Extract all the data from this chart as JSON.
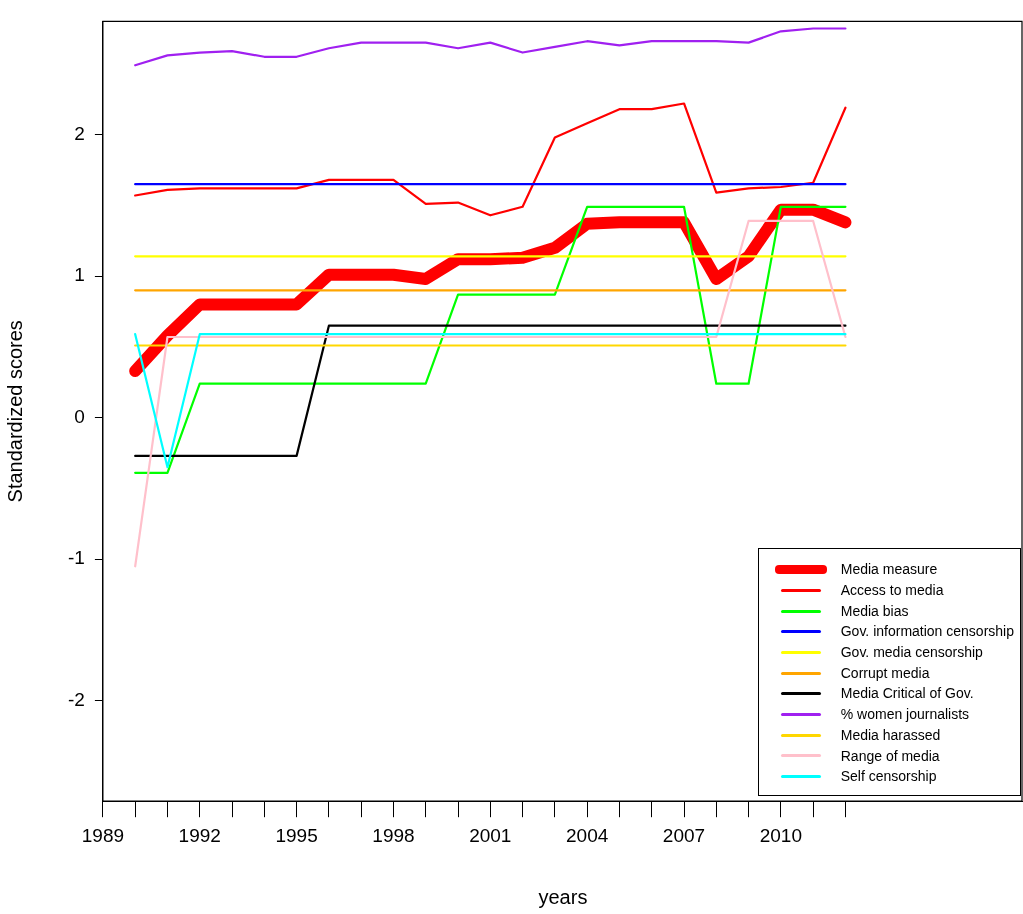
{
  "chart_data": {
    "type": "line",
    "xlabel": "years",
    "ylabel": "Standardized scores",
    "x": [
      1990,
      1991,
      1992,
      1993,
      1994,
      1995,
      1996,
      1997,
      1998,
      1999,
      2000,
      2001,
      2002,
      2003,
      2004,
      2005,
      2006,
      2007,
      2008,
      2009,
      2010,
      2011,
      2012
    ],
    "xlim": [
      1989,
      2017.5
    ],
    "xticks": [
      1989,
      {
        "value": 1990,
        "label": null
      },
      {
        "value": 1991,
        "label": null
      },
      1992,
      {
        "value": 1993,
        "label": null
      },
      {
        "value": 1994,
        "label": null
      },
      1995,
      {
        "value": 1996,
        "label": null
      },
      {
        "value": 1997,
        "label": null
      },
      1998,
      {
        "value": 1999,
        "label": null
      },
      {
        "value": 2000,
        "label": null
      },
      2001,
      {
        "value": 2002,
        "label": null
      },
      {
        "value": 2003,
        "label": null
      },
      2004,
      {
        "value": 2005,
        "label": null
      },
      {
        "value": 2006,
        "label": null
      },
      2007,
      {
        "value": 2008,
        "label": null
      },
      {
        "value": 2009,
        "label": null
      },
      2010,
      {
        "value": 2011,
        "label": null
      },
      {
        "value": 2012,
        "label": null
      }
    ],
    "ylim": [
      -2.71,
      2.8
    ],
    "yticks": [
      -2,
      -1,
      0,
      1,
      2
    ],
    "grid": false,
    "legend": "bottom right",
    "marker": "none",
    "line_style": "solid",
    "series": [
      {
        "name": "Media measure",
        "color": "#ff0000",
        "values": [
          0.33,
          0.58,
          0.8,
          0.8,
          0.8,
          0.8,
          1.01,
          1.01,
          1.01,
          0.98,
          1.12,
          1.12,
          1.13,
          1.2,
          1.37,
          1.38,
          1.38,
          1.38,
          0.98,
          1.14,
          1.47,
          1.47,
          1.38
        ]
      },
      {
        "name": "Access to media",
        "color": "#ff0000",
        "values": [
          1.57,
          1.61,
          1.62,
          1.62,
          1.62,
          1.62,
          1.68,
          1.68,
          1.68,
          1.51,
          1.52,
          1.43,
          1.49,
          1.98,
          2.08,
          2.18,
          2.18,
          2.22,
          1.59,
          1.62,
          1.63,
          1.66,
          2.19
        ]
      },
      {
        "name": "Media bias",
        "color": "#00ff00",
        "values": [
          -0.39,
          -0.39,
          0.24,
          0.24,
          0.24,
          0.24,
          0.24,
          0.24,
          0.24,
          0.24,
          0.87,
          0.87,
          0.87,
          0.87,
          1.49,
          1.49,
          1.49,
          1.49,
          0.24,
          0.24,
          1.49,
          1.49,
          1.49
        ]
      },
      {
        "name": "Gov. information censorship",
        "color": "#0000ff",
        "values": [
          1.65,
          1.65,
          1.65,
          1.65,
          1.65,
          1.65,
          1.65,
          1.65,
          1.65,
          1.65,
          1.65,
          1.65,
          1.65,
          1.65,
          1.65,
          1.65,
          1.65,
          1.65,
          1.65,
          1.65,
          1.65,
          1.65,
          1.65
        ]
      },
      {
        "name": "Gov. media censorship",
        "color": "#ffff00",
        "values": [
          1.14,
          1.14,
          1.14,
          1.14,
          1.14,
          1.14,
          1.14,
          1.14,
          1.14,
          1.14,
          1.14,
          1.14,
          1.14,
          1.14,
          1.14,
          1.14,
          1.14,
          1.14,
          1.14,
          1.14,
          1.14,
          1.14,
          1.14
        ]
      },
      {
        "name": "Corrupt media",
        "color": "#ffa500",
        "values": [
          0.9,
          0.9,
          0.9,
          0.9,
          0.9,
          0.9,
          0.9,
          0.9,
          0.9,
          0.9,
          0.9,
          0.9,
          0.9,
          0.9,
          0.9,
          0.9,
          0.9,
          0.9,
          0.9,
          0.9,
          0.9,
          0.9,
          0.9
        ]
      },
      {
        "name": "Media Critical of Gov.",
        "color": "#000000",
        "values": [
          -0.27,
          -0.27,
          -0.27,
          -0.27,
          -0.27,
          -0.27,
          0.65,
          0.65,
          0.65,
          0.65,
          0.65,
          0.65,
          0.65,
          0.65,
          0.65,
          0.65,
          0.65,
          0.65,
          0.65,
          0.65,
          0.65,
          0.65,
          0.65
        ]
      },
      {
        "name": "% women journalists",
        "color": "#a020f0",
        "values": [
          2.49,
          2.56,
          2.58,
          2.59,
          2.55,
          2.55,
          2.61,
          2.65,
          2.65,
          2.65,
          2.61,
          2.65,
          2.58,
          2.62,
          2.66,
          2.63,
          2.66,
          2.66,
          2.66,
          2.65,
          2.73,
          2.75,
          2.75
        ]
      },
      {
        "name": "Media harassed",
        "color": "#ffd700",
        "values": [
          0.51,
          0.51,
          0.51,
          0.51,
          0.51,
          0.51,
          0.51,
          0.51,
          0.51,
          0.51,
          0.51,
          0.51,
          0.51,
          0.51,
          0.51,
          0.51,
          0.51,
          0.51,
          0.51,
          0.51,
          0.51,
          0.51,
          0.51
        ]
      },
      {
        "name": "Range of media",
        "color": "#ffc0cb",
        "values": [
          -1.05,
          0.57,
          0.57,
          0.57,
          0.57,
          0.57,
          0.57,
          0.57,
          0.57,
          0.57,
          0.57,
          0.57,
          0.57,
          0.57,
          0.57,
          0.57,
          0.57,
          0.57,
          0.57,
          1.39,
          1.39,
          1.39,
          0.57
        ]
      },
      {
        "name": "Self censorship",
        "color": "#00ffff",
        "values": [
          0.59,
          -0.35,
          0.59,
          0.59,
          0.59,
          0.59,
          0.59,
          0.59,
          0.59,
          0.59,
          0.59,
          0.59,
          0.59,
          0.59,
          0.59,
          0.59,
          0.59,
          0.59,
          0.59,
          0.59,
          0.59,
          0.59,
          0.59
        ]
      }
    ]
  }
}
